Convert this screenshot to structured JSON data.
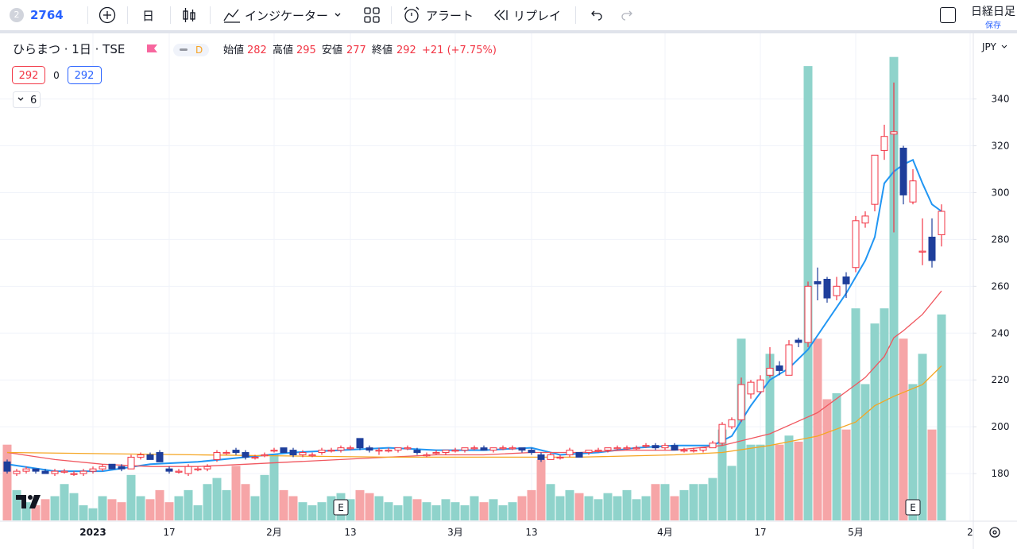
{
  "toolbar": {
    "symbol": "2764",
    "badge": "2",
    "interval": "日",
    "indicators": "インジケーター",
    "alert": "アラート",
    "replay": "リプレイ",
    "layout_name": "日経日足",
    "save": "保存"
  },
  "chart_data": {
    "type": "candlestick",
    "legend": {
      "title": "ひらまつ · 1日 · TSE",
      "flag": "D",
      "open_label": "始値",
      "open": 282,
      "high_label": "高値",
      "high": 295,
      "low_label": "安値",
      "low": 277,
      "close_label": "終値",
      "close": 292,
      "change": "+21 (+7.75%)",
      "bid": 292,
      "spread": 0,
      "ask": 292,
      "indicators_count": 6
    },
    "currency": "JPY",
    "categories": [
      null,
      null,
      null,
      null,
      null,
      null,
      null,
      null,
      null,
      "2023",
      null,
      null,
      null,
      null,
      null,
      null,
      null,
      "17",
      null,
      null,
      null,
      null,
      null,
      null,
      null,
      null,
      null,
      null,
      "2月",
      null,
      null,
      null,
      null,
      null,
      null,
      null,
      "13",
      null,
      null,
      null,
      null,
      null,
      null,
      null,
      null,
      null,
      null,
      "3月",
      null,
      null,
      null,
      null,
      null,
      null,
      null,
      "13",
      null,
      null,
      null,
      null,
      null,
      null,
      null,
      null,
      null,
      null,
      null,
      null,
      null,
      "4月",
      null,
      null,
      null,
      null,
      null,
      null,
      null,
      null,
      null,
      "17",
      null,
      null,
      null,
      null,
      null,
      null,
      null,
      null,
      null,
      "5月",
      null,
      null,
      null,
      null,
      null,
      null,
      null,
      null,
      null,
      null,
      null,
      "2"
    ],
    "open": [
      185,
      180,
      181,
      182,
      181,
      180,
      181,
      180,
      180,
      181,
      182,
      184,
      183,
      182,
      187,
      188,
      189,
      182,
      181,
      180,
      182,
      182,
      186,
      189,
      190,
      189,
      187,
      188,
      190,
      191,
      190,
      188,
      188,
      189,
      190,
      190,
      191,
      195,
      191,
      190,
      190,
      190,
      191,
      190,
      188,
      189,
      189,
      190,
      190,
      191,
      191,
      190,
      191,
      191,
      191,
      190,
      188,
      186,
      187,
      188,
      189,
      189,
      190,
      190,
      191,
      191,
      191,
      192,
      192,
      191,
      192,
      190,
      190,
      190,
      191,
      193,
      200,
      203,
      214,
      215,
      222,
      226,
      222,
      237,
      236,
      262,
      263,
      256,
      264,
      268,
      287,
      295,
      318,
      325,
      319,
      296,
      275,
      281,
      282,
      null,
      null,
      null
    ],
    "high": [
      186,
      182,
      183,
      182,
      182,
      182,
      182,
      181,
      182,
      183,
      184,
      184,
      184,
      188,
      189,
      189,
      190,
      183,
      182,
      184,
      183,
      184,
      190,
      190,
      191,
      190,
      188,
      189,
      191,
      191,
      191,
      190,
      189,
      191,
      191,
      192,
      192,
      195,
      192,
      191,
      191,
      191,
      192,
      191,
      189,
      190,
      190,
      191,
      191,
      192,
      192,
      191,
      192,
      192,
      191,
      191,
      189,
      189,
      188,
      191,
      189,
      190,
      191,
      191,
      192,
      192,
      192,
      193,
      193,
      193,
      193,
      191,
      191,
      191,
      194,
      202,
      204,
      221,
      220,
      222,
      234,
      228,
      237,
      238,
      262,
      268,
      264,
      264,
      266,
      290,
      292,
      316,
      329,
      347,
      320,
      310,
      289,
      289,
      295,
      null,
      null,
      null
    ],
    "low": [
      180,
      179,
      180,
      180,
      180,
      179,
      180,
      179,
      179,
      180,
      181,
      182,
      181,
      182,
      186,
      186,
      185,
      180,
      180,
      179,
      181,
      181,
      185,
      188,
      188,
      186,
      186,
      187,
      189,
      189,
      187,
      187,
      187,
      188,
      189,
      189,
      190,
      190,
      189,
      188,
      189,
      189,
      190,
      188,
      187,
      188,
      188,
      189,
      189,
      190,
      190,
      189,
      190,
      190,
      189,
      188,
      185,
      186,
      186,
      187,
      187,
      188,
      189,
      189,
      190,
      190,
      190,
      191,
      190,
      190,
      190,
      189,
      189,
      189,
      191,
      192,
      199,
      202,
      212,
      214,
      221,
      222,
      222,
      234,
      234,
      254,
      253,
      254,
      255,
      266,
      285,
      292,
      314,
      283,
      295,
      295,
      269,
      268,
      277,
      null,
      null,
      null
    ],
    "close": [
      181,
      181,
      182,
      181,
      180,
      181,
      181,
      180,
      181,
      182,
      183,
      182,
      182,
      187,
      188,
      186,
      185,
      181,
      181,
      183,
      182,
      183,
      189,
      189,
      189,
      187,
      187,
      188,
      190,
      189,
      188,
      189,
      188,
      190,
      190,
      191,
      191,
      191,
      190,
      190,
      190,
      191,
      191,
      189,
      188,
      189,
      190,
      190,
      191,
      191,
      190,
      191,
      191,
      191,
      190,
      189,
      186,
      188,
      187,
      190,
      187,
      190,
      190,
      191,
      191,
      191,
      191,
      192,
      191,
      192,
      190,
      190,
      190,
      191,
      193,
      201,
      203,
      218,
      219,
      220,
      225,
      224,
      235,
      236,
      260,
      261,
      255,
      260,
      261,
      288,
      290,
      316,
      324,
      326,
      299,
      305,
      275,
      271,
      292,
      null,
      null,
      null
    ],
    "volume": [
      25,
      10,
      6,
      5,
      7,
      8,
      12,
      9,
      5,
      4,
      8,
      7,
      6,
      15,
      8,
      7,
      10,
      6,
      8,
      10,
      5,
      12,
      14,
      10,
      18,
      12,
      8,
      15,
      22,
      10,
      8,
      6,
      5,
      6,
      8,
      9,
      7,
      10,
      9,
      8,
      6,
      5,
      8,
      7,
      6,
      5,
      7,
      6,
      5,
      8,
      6,
      7,
      5,
      6,
      8,
      10,
      20,
      12,
      8,
      10,
      9,
      8,
      7,
      9,
      8,
      10,
      7,
      8,
      12,
      12,
      8,
      10,
      12,
      12,
      14,
      30,
      18,
      60,
      25,
      25,
      55,
      25,
      28,
      26,
      150,
      60,
      40,
      42,
      30,
      70,
      45,
      65,
      70,
      153,
      60,
      45,
      55,
      30,
      68,
      null,
      null,
      null
    ],
    "up_color": "#f23645",
    "down_color": "#1e3e9b",
    "volume_up_color": "#8fd3cb",
    "volume_down_color": "#f6a5a7",
    "ylim": [
      160,
      367
    ],
    "yticks": [
      180,
      200,
      220,
      240,
      260,
      280,
      300,
      320,
      340
    ],
    "vlim": [
      0,
      160
    ],
    "grid": true,
    "moving_averages": [
      {
        "color": "#2196f3",
        "x": [
          0,
          5,
          10,
          15,
          20,
          25,
          30,
          35,
          40,
          45,
          50,
          55,
          58,
          62,
          66,
          70,
          74,
          76,
          78,
          80,
          82,
          84,
          86,
          88,
          90,
          91,
          92,
          93,
          94,
          95,
          96,
          97,
          98
        ],
        "values": [
          184,
          181,
          181,
          184,
          185,
          187,
          189,
          190,
          191,
          190,
          190,
          191,
          188,
          189,
          191,
          192,
          192,
          196,
          209,
          220,
          225,
          233,
          245,
          257,
          271,
          281,
          304,
          309,
          312,
          314,
          304,
          295,
          292
        ]
      },
      {
        "color": "#f0575f",
        "x": [
          0,
          5,
          10,
          15,
          20,
          25,
          30,
          35,
          40,
          45,
          50,
          55,
          60,
          65,
          70,
          75,
          80,
          85,
          89,
          90,
          92,
          93,
          94,
          96,
          98
        ],
        "values": [
          189,
          186,
          184,
          183,
          183,
          184,
          185,
          186,
          187,
          188,
          188,
          189,
          189,
          190,
          190,
          192,
          197,
          206,
          218,
          221,
          230,
          238,
          241,
          248,
          258
        ]
      },
      {
        "color": "#f5a623",
        "x": [
          0,
          20,
          40,
          60,
          70,
          75,
          80,
          85,
          89,
          91,
          93,
          96,
          98
        ],
        "values": [
          189,
          188,
          187,
          187,
          188,
          189,
          192,
          196,
          202,
          209,
          213,
          218,
          226
        ]
      }
    ],
    "events": [
      {
        "x": 35,
        "label": "E"
      },
      {
        "x": 95,
        "label": "E"
      }
    ]
  }
}
